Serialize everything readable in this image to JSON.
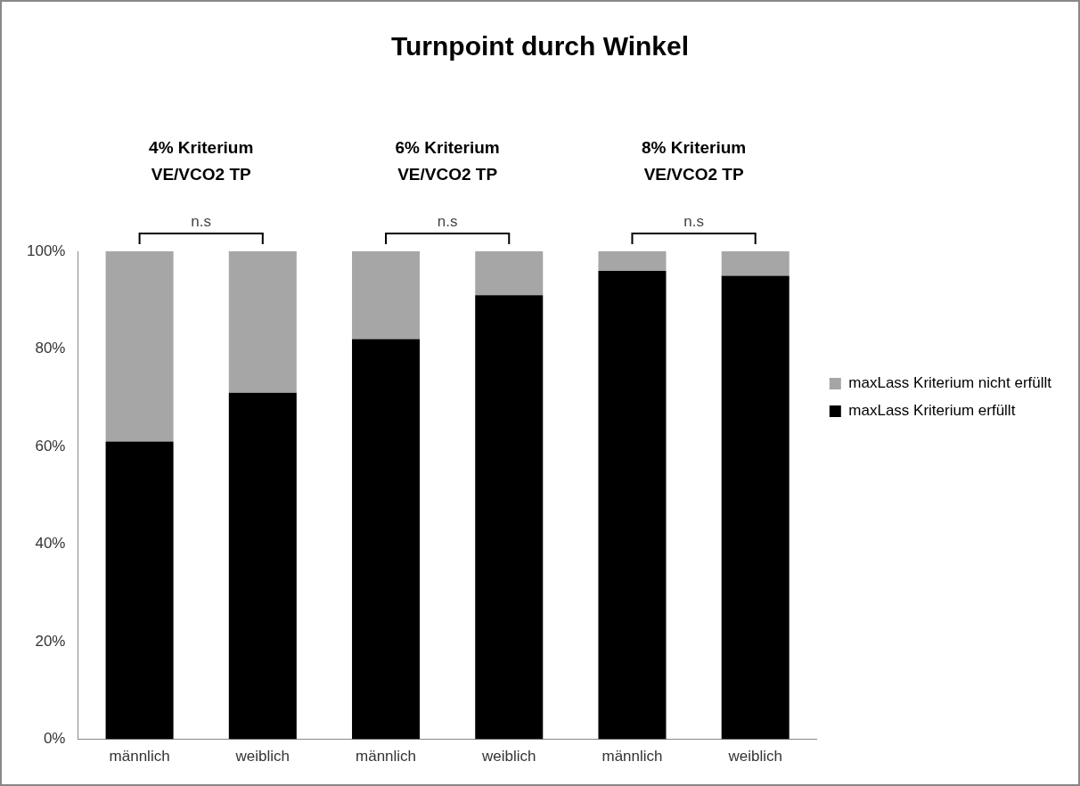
{
  "chart_data": {
    "type": "bar",
    "title": "Turnpoint durch Winkel",
    "categories": [
      "männlich",
      "weiblich",
      "männlich",
      "weiblich",
      "männlich",
      "weiblich"
    ],
    "stacked": true,
    "series": [
      {
        "name": "maxLass Kriterium erfüllt",
        "color": "#000000",
        "values": [
          61,
          71,
          82,
          91,
          96,
          95
        ]
      },
      {
        "name": "maxLass Kriterium nicht erfüllt",
        "color": "#a6a6a6",
        "values": [
          39,
          29,
          18,
          9,
          4,
          5
        ]
      }
    ],
    "ylim": [
      0,
      100
    ],
    "yticks": [
      {
        "value": 0,
        "label": "0%"
      },
      {
        "value": 20,
        "label": "20%"
      },
      {
        "value": 40,
        "label": "40%"
      },
      {
        "value": 60,
        "label": "60%"
      },
      {
        "value": 80,
        "label": "80%"
      },
      {
        "value": 100,
        "label": "100%"
      }
    ],
    "grid": false,
    "legend": "right",
    "annotations": [
      "4% Kriterium\nVE/VCO2 TP",
      "6% Kriterium\nVE/VCO2 TP",
      "8% Kriterium\nVE/VCO2 TP",
      "n.s",
      "n.s",
      "n.s"
    ]
  }
}
